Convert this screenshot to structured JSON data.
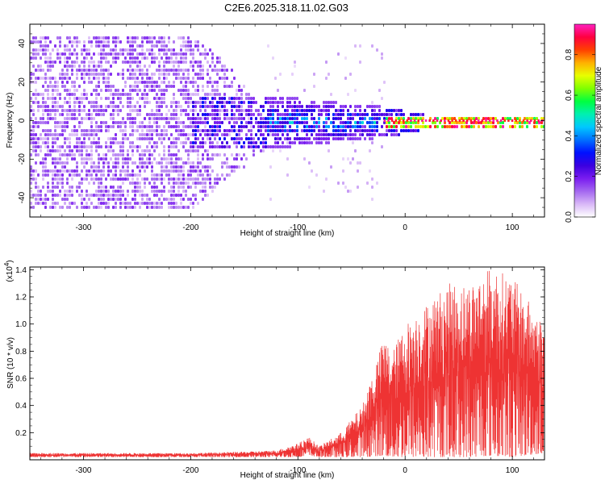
{
  "title": "C2E6.2025.318.11.02.G03",
  "chart_data": [
    {
      "type": "heatmap",
      "title": "C2E6.2025.318.11.02.G03",
      "xlabel": "Height of straight line (km)",
      "ylabel": "Frequency (Hz)",
      "xlim": [
        -350,
        130
      ],
      "ylim": [
        -50,
        50
      ],
      "xticks": [
        -300,
        -200,
        -100,
        0,
        100
      ],
      "yticks": [
        -40,
        -20,
        0,
        20,
        40
      ],
      "colorbar": {
        "label": "Normalized spectral amplitude",
        "range": [
          0.0,
          0.95
        ],
        "ticks": [
          0.0,
          0.2,
          0.4,
          0.6,
          0.8
        ],
        "tick_labels": [
          "0.0",
          "0.2",
          "0.4",
          "0.6",
          "0.8"
        ],
        "colors": [
          "#ffffff",
          "#d9b8f7",
          "#a468f0",
          "#7a1cf0",
          "#3a00e0",
          "#0010ff",
          "#0070ff",
          "#00c8ff",
          "#00f0b0",
          "#00ff40",
          "#80ff00",
          "#e8ff00",
          "#ffb000",
          "#ff4000",
          "#ff0040",
          "#ff20c0"
        ]
      },
      "regions": [
        {
          "name": "broadband noise",
          "x_range": [
            -350,
            -130
          ],
          "freq_range": [
            -50,
            50
          ],
          "amplitude": 0.1
        },
        {
          "name": "onset band",
          "x_range": [
            -130,
            -20
          ],
          "freq_range": [
            -14,
            14
          ],
          "amplitude": 0.35
        },
        {
          "name": "narrow carrier line",
          "x_range": [
            -20,
            130
          ],
          "freq_range": [
            -3,
            3
          ],
          "amplitude": 0.9
        }
      ]
    },
    {
      "type": "line",
      "xlabel": "Height of straight line (km)",
      "ylabel": "SNR (10 * v/v)",
      "y_multiplier": "(x10",
      "y_multiplier_exp": "4",
      "y_multiplier_close": ")",
      "xlim": [
        -350,
        130
      ],
      "ylim": [
        0,
        1.42
      ],
      "xticks": [
        -300,
        -200,
        -100,
        0,
        100
      ],
      "yticks": [
        0.2,
        0.4,
        0.6,
        0.8,
        1.0,
        1.2,
        1.4
      ],
      "ytick_labels": [
        "0.2",
        "0.4",
        "0.6",
        "0.8",
        "1.0",
        "1.2",
        "1.4"
      ],
      "color": "#ee3333",
      "envelope": {
        "x": [
          -350,
          -300,
          -200,
          -150,
          -120,
          -100,
          -90,
          -80,
          -60,
          -40,
          -20,
          -12,
          0,
          20,
          40,
          60,
          80,
          100,
          130
        ],
        "y_max": [
          0.05,
          0.05,
          0.05,
          0.06,
          0.07,
          0.12,
          0.17,
          0.1,
          0.2,
          0.4,
          0.9,
          0.8,
          1.0,
          1.15,
          1.3,
          1.3,
          1.42,
          1.35,
          1.0
        ],
        "y_min": [
          0.02,
          0.02,
          0.02,
          0.02,
          0.02,
          0.02,
          0.03,
          0.02,
          0.02,
          0.02,
          0.03,
          0.02,
          0.02,
          0.02,
          0.02,
          0.02,
          0.03,
          0.02,
          0.05
        ]
      }
    }
  ]
}
